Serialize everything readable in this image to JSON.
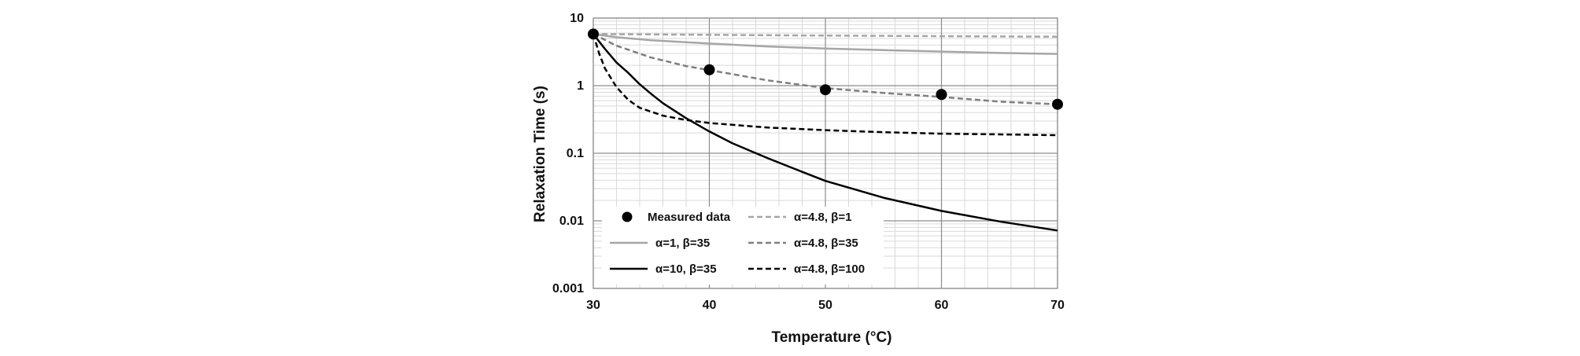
{
  "chart_data": {
    "type": "line",
    "title": "",
    "xlabel": "Temperature  (°C)",
    "ylabel": "Relaxation  Time  (s)",
    "x_scale": "linear",
    "y_scale": "log",
    "xlim": [
      30,
      70
    ],
    "ylim": [
      0.001,
      10
    ],
    "x_ticks": [
      30,
      40,
      50,
      60,
      70
    ],
    "y_ticks": [
      0.001,
      0.01,
      0.1,
      1,
      10
    ],
    "x_tick_labels": [
      "30",
      "40",
      "50",
      "60",
      "70"
    ],
    "y_tick_labels": [
      "0.001",
      "0.01",
      "0.1",
      "1",
      "10"
    ],
    "grid": true,
    "legend_position": "bottom-left",
    "series": [
      {
        "name": "Measured data",
        "kind": "scatter",
        "color": "#000000",
        "x": [
          30,
          40,
          50,
          60,
          70
        ],
        "y": [
          5.8,
          1.72,
          0.87,
          0.74,
          0.53
        ]
      },
      {
        "name": "α=1, β=35",
        "kind": "line",
        "color": "#a6a6a6",
        "dash": "solid",
        "x": [
          30,
          32,
          35,
          40,
          45,
          50,
          55,
          60,
          65,
          70
        ],
        "y": [
          5.8,
          5.2,
          4.7,
          4.2,
          3.8,
          3.55,
          3.35,
          3.2,
          3.05,
          2.95
        ]
      },
      {
        "name": "α=10, β=35",
        "kind": "line",
        "color": "#000000",
        "dash": "solid",
        "x": [
          30,
          31,
          32,
          33,
          34,
          35,
          36,
          38,
          40,
          42,
          45,
          48,
          50,
          55,
          60,
          65,
          70
        ],
        "y": [
          5.8,
          3.5,
          2.2,
          1.55,
          1.05,
          0.75,
          0.55,
          0.33,
          0.21,
          0.14,
          0.085,
          0.053,
          0.039,
          0.022,
          0.014,
          0.0098,
          0.0072
        ]
      },
      {
        "name": "α=4.8, β=1",
        "kind": "line",
        "color": "#a6a6a6",
        "dash": "dashed",
        "x": [
          30,
          40,
          50,
          60,
          70
        ],
        "y": [
          5.8,
          5.65,
          5.5,
          5.4,
          5.3
        ]
      },
      {
        "name": "α=4.8, β=35",
        "kind": "line",
        "color": "#7f7f7f",
        "dash": "dashed",
        "x": [
          30,
          32,
          35,
          38,
          40,
          45,
          50,
          55,
          60,
          65,
          70
        ],
        "y": [
          5.8,
          3.9,
          2.6,
          1.95,
          1.7,
          1.2,
          0.92,
          0.78,
          0.68,
          0.58,
          0.53
        ]
      },
      {
        "name": "α=4.8, β=100",
        "kind": "line",
        "color": "#000000",
        "dash": "dashed",
        "x": [
          30,
          30.5,
          31,
          32,
          33,
          34,
          36,
          38,
          40,
          45,
          50,
          55,
          60,
          65,
          70
        ],
        "y": [
          5.8,
          3.0,
          1.8,
          0.95,
          0.62,
          0.47,
          0.36,
          0.31,
          0.28,
          0.24,
          0.22,
          0.205,
          0.195,
          0.19,
          0.185
        ]
      }
    ]
  }
}
